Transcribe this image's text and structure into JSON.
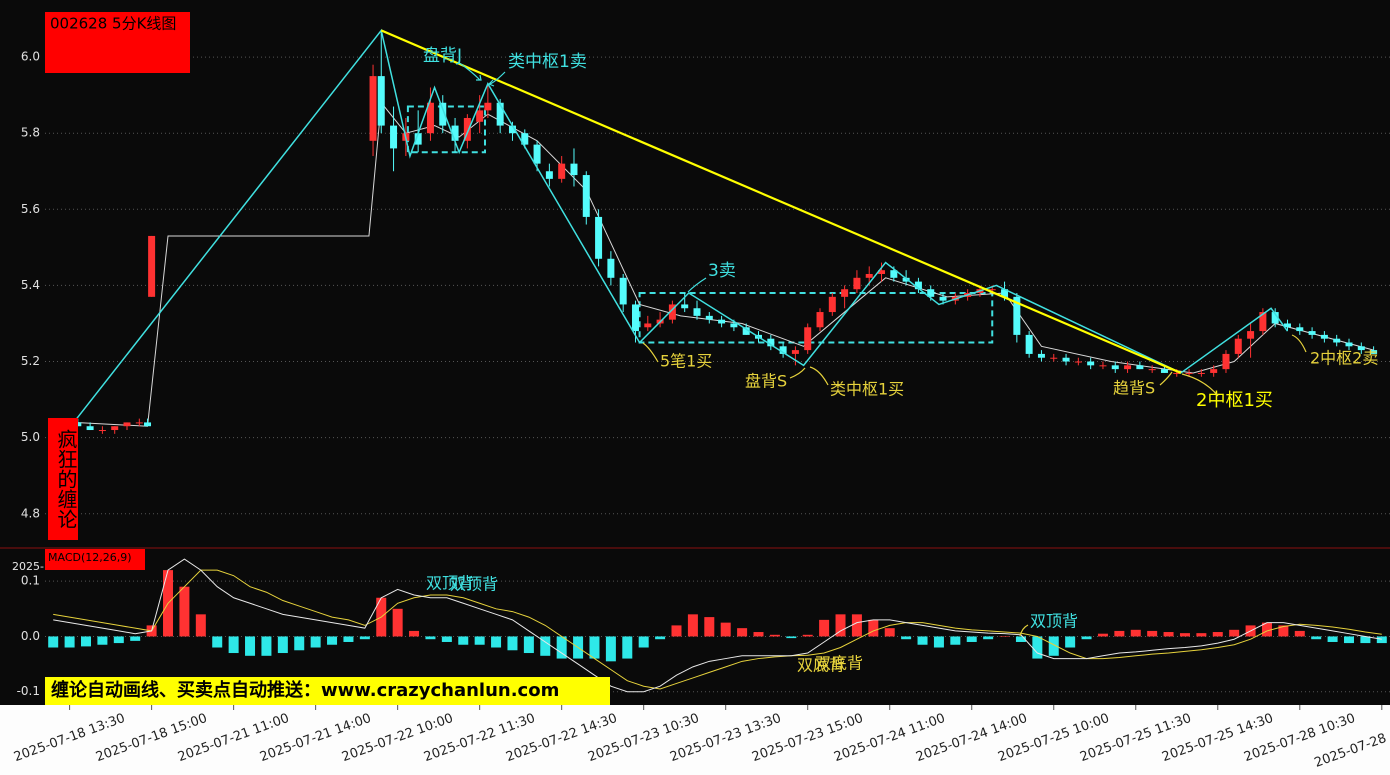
{
  "chart_data": [
    {
      "type": "candlestick",
      "title": "002628 5分K线图",
      "side_label": "疯狂的缠论",
      "xlim": [
        0,
        328
      ],
      "xticks": [
        {
          "value": 6,
          "label": "2025-07-18 13:30"
        },
        {
          "value": 26,
          "label": "2025-07-18 15:00"
        },
        {
          "value": 46,
          "label": "2025-07-21 11:00"
        },
        {
          "value": 66,
          "label": "2025-07-21 14:00"
        },
        {
          "value": 86,
          "label": "2025-07-22 10:00"
        },
        {
          "value": 106,
          "label": "2025-07-22 11:30"
        },
        {
          "value": 126,
          "label": "2025-07-22 14:30"
        },
        {
          "value": 146,
          "label": "2025-07-23 10:30"
        },
        {
          "value": 166,
          "label": "2025-07-23 13:30"
        },
        {
          "value": 186,
          "label": "2025-07-23 15:00"
        },
        {
          "value": 206,
          "label": "2025-07-24 11:00"
        },
        {
          "value": 226,
          "label": "2025-07-24 14:00"
        },
        {
          "value": 246,
          "label": "2025-07-25 10:00"
        },
        {
          "value": 266,
          "label": "2025-07-25 11:30"
        },
        {
          "value": 286,
          "label": "2025-07-25 14:30"
        },
        {
          "value": 306,
          "label": "2025-07-28 10:30"
        },
        {
          "value": 326,
          "label": "2025-07-28"
        }
      ],
      "ylim": [
        4.71,
        6.15
      ],
      "yticks": [
        4.8,
        {
          "value": 5,
          "label": "5.0"
        },
        5.2,
        5.4,
        5.6,
        5.8,
        {
          "value": 6,
          "label": "6.0"
        }
      ],
      "grid": true,
      "up_color": "#ff3232",
      "down_color": "#54fcfc",
      "candles": [
        [
          8,
          5.04,
          5.05,
          5.03,
          5.03
        ],
        [
          11,
          5.03,
          5.04,
          5.02,
          5.02
        ],
        [
          14,
          5.02,
          5.03,
          5.01,
          5.02
        ],
        [
          17,
          5.02,
          5.03,
          5.01,
          5.03
        ],
        [
          20,
          5.03,
          5.04,
          5.02,
          5.04
        ],
        [
          23,
          5.04,
          5.05,
          5.03,
          5.04
        ],
        [
          25,
          5.04,
          5.05,
          5.03,
          5.03
        ],
        [
          26,
          5.37,
          5.53,
          5.37,
          5.53
        ],
        [
          80,
          5.78,
          5.98,
          5.74,
          5.95
        ],
        [
          82,
          5.95,
          6.07,
          5.8,
          5.82
        ],
        [
          85,
          5.82,
          5.87,
          5.7,
          5.76
        ],
        [
          88,
          5.78,
          5.84,
          5.74,
          5.8
        ],
        [
          91,
          5.8,
          5.86,
          5.75,
          5.77
        ],
        [
          94,
          5.8,
          5.92,
          5.78,
          5.88
        ],
        [
          97,
          5.88,
          5.9,
          5.8,
          5.82
        ],
        [
          100,
          5.82,
          5.84,
          5.75,
          5.78
        ],
        [
          103,
          5.78,
          5.85,
          5.76,
          5.84
        ],
        [
          106,
          5.83,
          5.9,
          5.8,
          5.86
        ],
        [
          108,
          5.86,
          5.93,
          5.84,
          5.88
        ],
        [
          111,
          5.88,
          5.89,
          5.8,
          5.82
        ],
        [
          114,
          5.82,
          5.83,
          5.78,
          5.8
        ],
        [
          117,
          5.8,
          5.81,
          5.76,
          5.77
        ],
        [
          120,
          5.77,
          5.78,
          5.7,
          5.72
        ],
        [
          123,
          5.7,
          5.72,
          5.66,
          5.68
        ],
        [
          126,
          5.68,
          5.74,
          5.67,
          5.72
        ],
        [
          129,
          5.72,
          5.76,
          5.66,
          5.69
        ],
        [
          132,
          5.69,
          5.7,
          5.56,
          5.58
        ],
        [
          135,
          5.58,
          5.6,
          5.45,
          5.47
        ],
        [
          138,
          5.47,
          5.49,
          5.4,
          5.42
        ],
        [
          141,
          5.42,
          5.43,
          5.33,
          5.35
        ],
        [
          144,
          5.35,
          5.36,
          5.25,
          5.28
        ],
        [
          147,
          5.29,
          5.32,
          5.28,
          5.3
        ],
        [
          150,
          5.3,
          5.33,
          5.29,
          5.31
        ],
        [
          153,
          5.31,
          5.36,
          5.3,
          5.35
        ],
        [
          156,
          5.35,
          5.38,
          5.33,
          5.34
        ],
        [
          159,
          5.34,
          5.36,
          5.31,
          5.32
        ],
        [
          162,
          5.32,
          5.33,
          5.3,
          5.31
        ],
        [
          165,
          5.31,
          5.32,
          5.29,
          5.3
        ],
        [
          168,
          5.3,
          5.31,
          5.28,
          5.29
        ],
        [
          171,
          5.29,
          5.3,
          5.27,
          5.27
        ],
        [
          174,
          5.27,
          5.28,
          5.25,
          5.26
        ],
        [
          177,
          5.26,
          5.27,
          5.23,
          5.24
        ],
        [
          180,
          5.24,
          5.25,
          5.21,
          5.22
        ],
        [
          183,
          5.22,
          5.24,
          5.19,
          5.23
        ],
        [
          186,
          5.23,
          5.3,
          5.22,
          5.29
        ],
        [
          189,
          5.29,
          5.34,
          5.28,
          5.33
        ],
        [
          192,
          5.33,
          5.38,
          5.32,
          5.37
        ],
        [
          195,
          5.37,
          5.4,
          5.34,
          5.39
        ],
        [
          198,
          5.39,
          5.44,
          5.38,
          5.42
        ],
        [
          201,
          5.42,
          5.45,
          5.4,
          5.43
        ],
        [
          204,
          5.43,
          5.46,
          5.41,
          5.44
        ],
        [
          207,
          5.44,
          5.45,
          5.41,
          5.42
        ],
        [
          210,
          5.42,
          5.44,
          5.4,
          5.41
        ],
        [
          213,
          5.41,
          5.42,
          5.38,
          5.39
        ],
        [
          216,
          5.39,
          5.4,
          5.36,
          5.37
        ],
        [
          219,
          5.37,
          5.38,
          5.35,
          5.36
        ],
        [
          222,
          5.36,
          5.38,
          5.35,
          5.37
        ],
        [
          225,
          5.37,
          5.39,
          5.36,
          5.38
        ],
        [
          228,
          5.38,
          5.4,
          5.37,
          5.39
        ],
        [
          231,
          5.39,
          5.4,
          5.38,
          5.39
        ],
        [
          234,
          5.39,
          5.41,
          5.36,
          5.37
        ],
        [
          237,
          5.37,
          5.38,
          5.25,
          5.27
        ],
        [
          240,
          5.27,
          5.28,
          5.21,
          5.22
        ],
        [
          243,
          5.22,
          5.23,
          5.2,
          5.21
        ],
        [
          246,
          5.21,
          5.22,
          5.2,
          5.21
        ],
        [
          249,
          5.21,
          5.22,
          5.19,
          5.2
        ],
        [
          252,
          5.2,
          5.21,
          5.19,
          5.2
        ],
        [
          255,
          5.2,
          5.21,
          5.18,
          5.19
        ],
        [
          258,
          5.19,
          5.2,
          5.18,
          5.19
        ],
        [
          261,
          5.19,
          5.2,
          5.17,
          5.18
        ],
        [
          264,
          5.18,
          5.2,
          5.17,
          5.19
        ],
        [
          267,
          5.19,
          5.2,
          5.18,
          5.18
        ],
        [
          270,
          5.18,
          5.19,
          5.17,
          5.18
        ],
        [
          273,
          5.18,
          5.19,
          5.17,
          5.17
        ],
        [
          276,
          5.17,
          5.18,
          5.16,
          5.17
        ],
        [
          279,
          5.17,
          5.18,
          5.16,
          5.17
        ],
        [
          282,
          5.17,
          5.18,
          5.16,
          5.17
        ],
        [
          285,
          5.17,
          5.19,
          5.16,
          5.18
        ],
        [
          288,
          5.18,
          5.23,
          5.17,
          5.22
        ],
        [
          291,
          5.22,
          5.27,
          5.21,
          5.26
        ],
        [
          294,
          5.26,
          5.3,
          5.21,
          5.28
        ],
        [
          297,
          5.28,
          5.34,
          5.27,
          5.33
        ],
        [
          300,
          5.33,
          5.34,
          5.29,
          5.3
        ],
        [
          303,
          5.3,
          5.31,
          5.28,
          5.29
        ],
        [
          306,
          5.29,
          5.3,
          5.27,
          5.28
        ],
        [
          309,
          5.28,
          5.29,
          5.26,
          5.27
        ],
        [
          312,
          5.27,
          5.28,
          5.25,
          5.26
        ],
        [
          315,
          5.26,
          5.27,
          5.24,
          5.25
        ],
        [
          318,
          5.25,
          5.26,
          5.23,
          5.24
        ],
        [
          321,
          5.24,
          5.25,
          5.22,
          5.23
        ],
        [
          324,
          5.23,
          5.24,
          5.22,
          5.22
        ]
      ],
      "ma": [
        [
          7,
          5.04
        ],
        [
          25,
          5.03
        ],
        [
          30,
          5.53
        ],
        [
          79,
          5.53
        ],
        [
          82,
          5.88
        ],
        [
          88,
          5.8
        ],
        [
          95,
          5.82
        ],
        [
          101,
          5.79
        ],
        [
          108,
          5.85
        ],
        [
          120,
          5.78
        ],
        [
          132,
          5.65
        ],
        [
          145,
          5.35
        ],
        [
          155,
          5.32
        ],
        [
          170,
          5.3
        ],
        [
          185,
          5.24
        ],
        [
          195,
          5.33
        ],
        [
          205,
          5.42
        ],
        [
          220,
          5.37
        ],
        [
          234,
          5.38
        ],
        [
          243,
          5.24
        ],
        [
          260,
          5.2
        ],
        [
          280,
          5.17
        ],
        [
          290,
          5.2
        ],
        [
          300,
          5.3
        ],
        [
          324,
          5.23
        ]
      ],
      "strokes": [
        [
          7,
          5.04
        ],
        [
          82,
          6.07
        ],
        [
          89,
          5.74
        ],
        [
          95,
          5.92
        ],
        [
          101,
          5.75
        ],
        [
          108,
          5.93
        ],
        [
          145,
          5.25
        ],
        [
          157,
          5.38
        ],
        [
          185,
          5.19
        ],
        [
          205,
          5.46
        ],
        [
          218,
          5.35
        ],
        [
          232,
          5.4
        ],
        [
          277,
          5.17
        ],
        [
          299,
          5.34
        ],
        [
          303,
          5.28
        ]
      ],
      "stroke_color": "#40e0e0",
      "segment": [
        [
          82,
          6.07
        ],
        [
          277,
          5.17
        ]
      ],
      "segment_color": "#ffff00",
      "zhongshu": [
        [
          88.5,
          107.3,
          5.75,
          5.87
        ],
        [
          145,
          231,
          5.25,
          5.38
        ]
      ],
      "annotations": [
        "盘背J",
        "类中枢1卖",
        "3卖",
        "5笔1买",
        "盘背S",
        "类中枢1买",
        "趋背S",
        "2中枢1买",
        "2中枢2卖"
      ]
    },
    {
      "type": "macd",
      "label": "MACD(12,26,9)",
      "cropped_label": "2025-",
      "footer": "缠论自动画线、买卖点自动推送：www.crazychanlun.com",
      "ylim": [
        -0.124,
        0.16
      ],
      "yticks": [
        -0.1,
        {
          "value": 0,
          "label": "0.0"
        },
        0.1
      ],
      "x": [
        2,
        6,
        10,
        14,
        18,
        22,
        26,
        30,
        34,
        38,
        42,
        46,
        50,
        54,
        58,
        62,
        66,
        70,
        74,
        78,
        82,
        86,
        90,
        94,
        98,
        102,
        106,
        110,
        114,
        118,
        122,
        126,
        130,
        134,
        138,
        142,
        146,
        150,
        154,
        158,
        162,
        166,
        170,
        174,
        178,
        182,
        186,
        190,
        194,
        198,
        202,
        206,
        210,
        214,
        218,
        222,
        226,
        230,
        234,
        238,
        242,
        246,
        250,
        254,
        258,
        262,
        266,
        270,
        274,
        278,
        282,
        286,
        290,
        294,
        298,
        302,
        306,
        310,
        314,
        318,
        322,
        326
      ],
      "hist": [
        -0.02,
        -0.02,
        -0.018,
        -0.015,
        -0.012,
        -0.008,
        0.02,
        0.12,
        0.09,
        0.04,
        -0.02,
        -0.03,
        -0.035,
        -0.035,
        -0.03,
        -0.025,
        -0.02,
        -0.015,
        -0.01,
        -0.005,
        0.07,
        0.05,
        0.01,
        -0.005,
        -0.01,
        -0.015,
        -0.015,
        -0.02,
        -0.025,
        -0.03,
        -0.035,
        -0.04,
        -0.04,
        -0.04,
        -0.045,
        -0.04,
        -0.02,
        -0.005,
        0.02,
        0.04,
        0.035,
        0.025,
        0.015,
        0.008,
        0.003,
        -0.003,
        0.003,
        0.03,
        0.04,
        0.04,
        0.03,
        0.015,
        -0.005,
        -0.015,
        -0.02,
        -0.015,
        -0.01,
        -0.005,
        0,
        -0.01,
        -0.04,
        -0.035,
        -0.02,
        -0.005,
        0.005,
        0.01,
        0.012,
        0.01,
        0.008,
        0.006,
        0.006,
        0.008,
        0.012,
        0.02,
        0.025,
        0.02,
        0.01,
        -0.005,
        -0.01,
        -0.012,
        -0.012,
        -0.012
      ],
      "dif": [
        0.03,
        0.025,
        0.02,
        0.015,
        0.01,
        0.005,
        0.01,
        0.12,
        0.14,
        0.12,
        0.09,
        0.07,
        0.06,
        0.05,
        0.04,
        0.035,
        0.03,
        0.025,
        0.02,
        0.015,
        0.07,
        0.085,
        0.075,
        0.07,
        0.07,
        0.06,
        0.05,
        0.04,
        0.03,
        0.01,
        -0.01,
        -0.03,
        -0.05,
        -0.07,
        -0.09,
        -0.1,
        -0.1,
        -0.09,
        -0.07,
        -0.055,
        -0.045,
        -0.04,
        -0.035,
        -0.035,
        -0.035,
        -0.035,
        -0.03,
        -0.01,
        0.01,
        0.025,
        0.03,
        0.03,
        0.025,
        0.02,
        0.015,
        0.01,
        0.008,
        0.006,
        0.005,
        0.003,
        -0.03,
        -0.04,
        -0.04,
        -0.04,
        -0.035,
        -0.03,
        -0.028,
        -0.025,
        -0.022,
        -0.02,
        -0.017,
        -0.012,
        -0.005,
        0.01,
        0.025,
        0.025,
        0.02,
        0.015,
        0.01,
        0.005,
        0,
        -0.005
      ],
      "dea": [
        0.04,
        0.035,
        0.03,
        0.025,
        0.02,
        0.015,
        0.01,
        0.06,
        0.09,
        0.12,
        0.12,
        0.11,
        0.09,
        0.08,
        0.065,
        0.055,
        0.045,
        0.035,
        0.03,
        0.02,
        0.035,
        0.06,
        0.07,
        0.075,
        0.075,
        0.07,
        0.06,
        0.05,
        0.045,
        0.035,
        0.02,
        0,
        -0.02,
        -0.04,
        -0.06,
        -0.08,
        -0.09,
        -0.095,
        -0.085,
        -0.075,
        -0.065,
        -0.055,
        -0.045,
        -0.04,
        -0.037,
        -0.035,
        -0.034,
        -0.03,
        -0.02,
        -0.005,
        0.01,
        0.02,
        0.025,
        0.025,
        0.02,
        0.015,
        0.012,
        0.01,
        0.008,
        0.006,
        0,
        -0.015,
        -0.03,
        -0.04,
        -0.04,
        -0.038,
        -0.035,
        -0.032,
        -0.03,
        -0.027,
        -0.024,
        -0.02,
        -0.015,
        -0.005,
        0.01,
        0.018,
        0.022,
        0.02,
        0.017,
        0.013,
        0.008,
        0.004
      ],
      "up_color": "#ff3232",
      "down_color": "#2ee8e8",
      "dif_color": "#e8e8e8",
      "dea_color": "#e6d23c",
      "annotations": [
        "双顶背",
        "双顶背",
        "双底背",
        "双底背",
        "双顶背"
      ]
    }
  ]
}
